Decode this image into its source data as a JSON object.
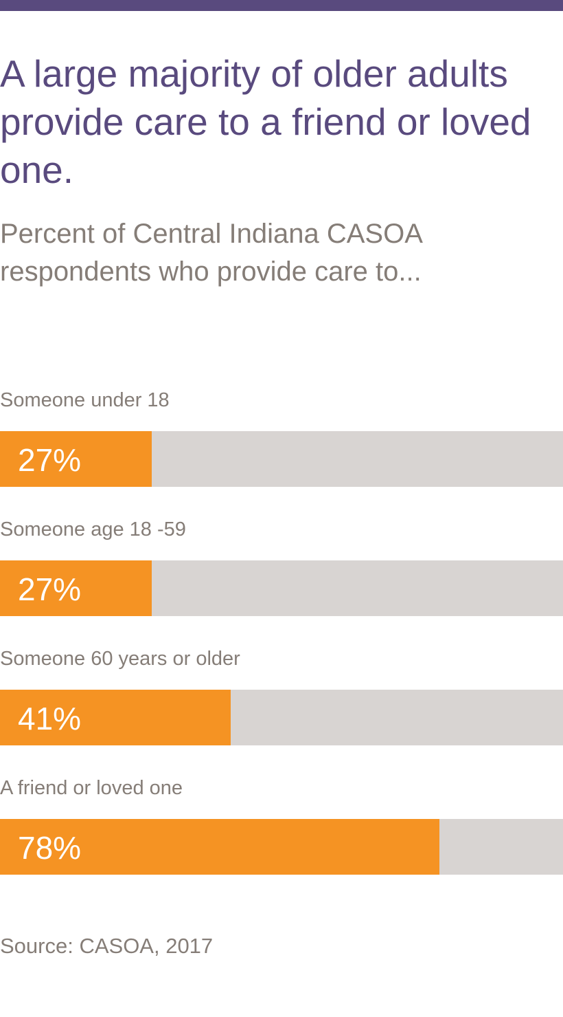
{
  "header": {
    "title": "A large majority of older adults provide care to a friend or loved one.",
    "subtitle": "Percent of Central Indiana CASOA respondents who provide care to..."
  },
  "colors": {
    "top_bar": "#594a7e",
    "title": "#594a7e",
    "text_gray": "#857d77",
    "bar_fill": "#f59323",
    "bar_track": "#d8d4d2",
    "value_text": "#ffffff"
  },
  "chart_data": {
    "type": "bar",
    "orientation": "horizontal",
    "title": "A large majority of older adults provide care to a friend or loved one.",
    "subtitle": "Percent of Central Indiana CASOA respondents who provide care to...",
    "categories": [
      "Someone under 18",
      "Someone age 18 -59",
      "Someone 60 years or older",
      "A friend or loved one"
    ],
    "values": [
      27,
      27,
      41,
      78
    ],
    "value_labels": [
      "27%",
      "27%",
      "41%",
      "78%"
    ],
    "unit": "%",
    "xlim": [
      0,
      100
    ],
    "grid": false,
    "legend": "none"
  },
  "footer": {
    "source": "Source: CASOA, 2017"
  }
}
